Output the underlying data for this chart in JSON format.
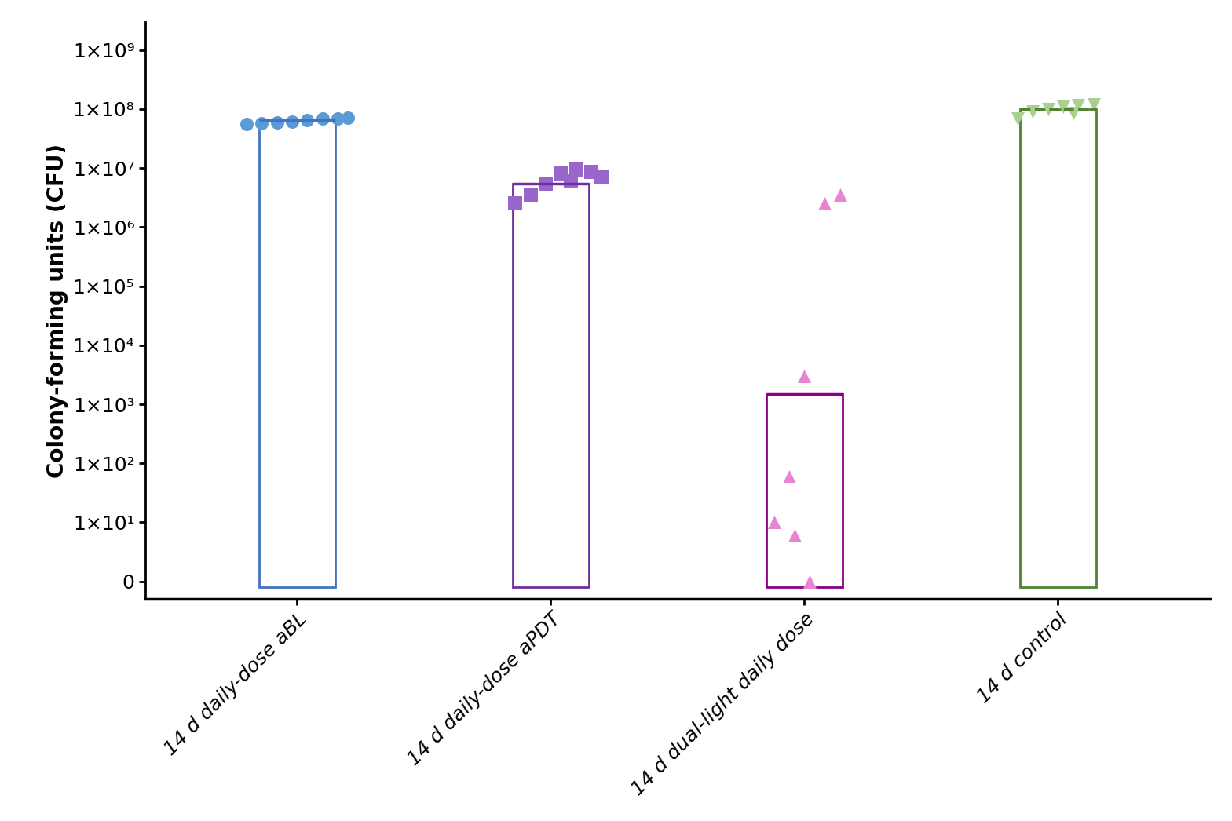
{
  "categories": [
    "14 d daily-dose aBL",
    "14 d daily-dose aPDT",
    "14 d dual-light daily dose",
    "14 d control"
  ],
  "bar_medians": [
    65000000.0,
    5500000.0,
    1500,
    100000000.0
  ],
  "bar_edge_colors": [
    "#4472C4",
    "#7030A0",
    "#8B008B",
    "#538135"
  ],
  "scatter_colors": [
    "#5B9BD5",
    "#9966CC",
    "#E884D4",
    "#A9D18E"
  ],
  "scatter_markers": [
    "o",
    "s",
    "^",
    "v"
  ],
  "scatter_sets": [
    [
      55000000.0,
      58000000.0,
      60000000.0,
      62000000.0,
      65000000.0,
      68000000.0,
      70000000.0,
      72000000.0
    ],
    [
      2500000.0,
      3500000.0,
      5500000.0,
      8000000.0,
      9500000.0,
      8500000.0,
      7000000.0,
      6000000.0
    ],
    [
      3000,
      2500000,
      3500000,
      60,
      10,
      6,
      1
    ],
    [
      70000000.0,
      90000000.0,
      100000000.0,
      110000000.0,
      115000000.0,
      120000000.0,
      85000000.0
    ]
  ],
  "scatter_x_offsets": [
    [
      -0.2,
      -0.14,
      -0.08,
      -0.02,
      0.04,
      0.1,
      0.16,
      0.2
    ],
    [
      -0.14,
      -0.08,
      -0.02,
      0.04,
      0.1,
      0.16,
      0.2,
      0.08
    ],
    [
      0.0,
      0.08,
      0.14,
      -0.06,
      -0.12,
      -0.04,
      0.02
    ],
    [
      -0.16,
      -0.1,
      -0.04,
      0.02,
      0.08,
      0.14,
      0.06
    ]
  ],
  "ylabel": "Colony-forming units (CFU)",
  "background_color": "#FFFFFF",
  "bar_width": 0.3,
  "figsize": [
    15.69,
    10.46
  ],
  "dpi": 100
}
